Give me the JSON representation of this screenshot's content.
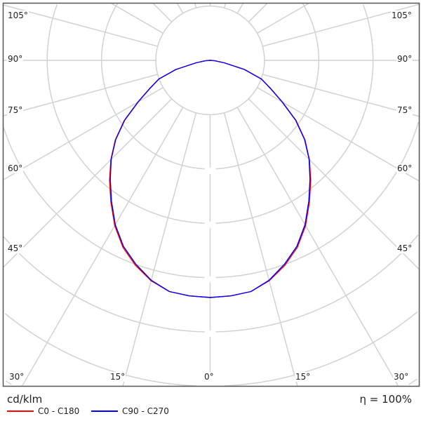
{
  "chart_data": {
    "type": "polar",
    "unit_label": "cd/klm",
    "efficiency_label": "η = 100%",
    "angle_labels": {
      "left": [
        "105°",
        "90°",
        "75°",
        "60°",
        "45°",
        "30°",
        "15°"
      ],
      "bottom_center": "0°",
      "right": [
        "105°",
        "90°",
        "75°",
        "60°",
        "45°",
        "30°",
        "15°"
      ]
    },
    "spoke_step_deg": 15,
    "grid": true,
    "zero_direction": "down",
    "intensity_scale": "relative to maximum (no ring values printed)",
    "gamma_deg": [
      0,
      5,
      10,
      15,
      20,
      25,
      30,
      35,
      40,
      45,
      50,
      55,
      60,
      65,
      70,
      75,
      80,
      85,
      90
    ],
    "series": [
      {
        "name": "C0 - C180",
        "color": "#ff0000",
        "values": [
          1.0,
          0.997,
          0.99,
          0.962,
          0.92,
          0.87,
          0.805,
          0.73,
          0.66,
          0.592,
          0.522,
          0.442,
          0.352,
          0.282,
          0.23,
          0.15,
          0.06,
          0.02,
          0.0
        ]
      },
      {
        "name": "C90 - C270",
        "color": "#0000ff",
        "values": [
          1.0,
          0.997,
          0.99,
          0.96,
          0.915,
          0.865,
          0.8,
          0.725,
          0.655,
          0.59,
          0.52,
          0.44,
          0.35,
          0.28,
          0.23,
          0.15,
          0.06,
          0.02,
          0.0
        ]
      }
    ]
  }
}
